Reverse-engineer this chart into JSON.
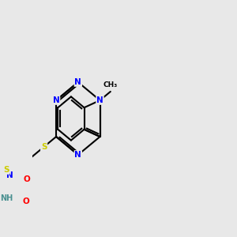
{
  "background_color": "#e8e8e8",
  "bond_color": "#000000",
  "atom_colors": {
    "N": "#0000ff",
    "S": "#cccc00",
    "O": "#ff0000",
    "H": "#4a9090",
    "C": "#000000"
  },
  "figsize": [
    3.0,
    3.0
  ],
  "dpi": 100
}
